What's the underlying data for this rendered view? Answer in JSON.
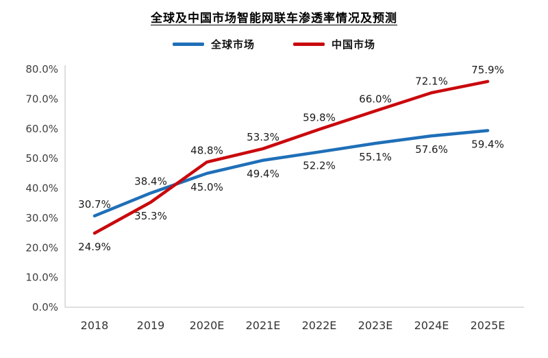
{
  "chart_data": {
    "type": "line",
    "title": "全球及中国市场智能网联车渗透率情况及预测",
    "categories": [
      "2018",
      "2019",
      "2020E",
      "2021E",
      "2022E",
      "2023E",
      "2024E",
      "2025E"
    ],
    "series": [
      {
        "name": "全球市场",
        "color": "#1F6FB8",
        "values": [
          30.7,
          38.4,
          45.0,
          49.4,
          52.2,
          55.1,
          57.6,
          59.4
        ],
        "label_side": [
          "above",
          "above",
          "below",
          "below",
          "below",
          "below",
          "below",
          "below"
        ]
      },
      {
        "name": "中国市场",
        "color": "#C9090D",
        "values": [
          24.9,
          35.3,
          48.8,
          53.3,
          59.8,
          66.0,
          72.1,
          75.9
        ],
        "label_side": [
          "below",
          "below",
          "above",
          "above",
          "above",
          "above",
          "above",
          "above"
        ]
      }
    ],
    "ylim": [
      0,
      80
    ],
    "ytick_step": 10,
    "ytick_format": "percent-1dp",
    "grid": false,
    "legend_position": "top",
    "axis_color": "#bfbfbf",
    "tick_label_color": "#404040",
    "data_label_color": "#1a1a1a"
  }
}
